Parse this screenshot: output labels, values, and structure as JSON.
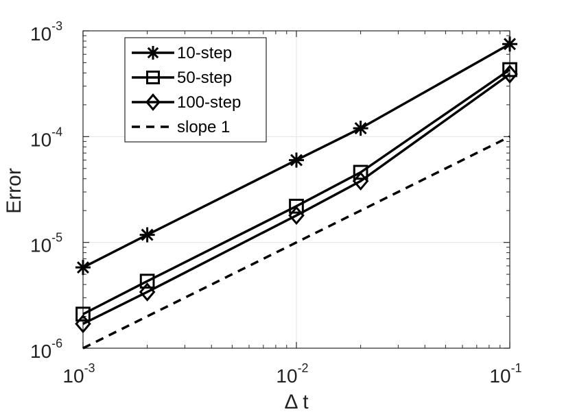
{
  "chart_data": {
    "type": "line",
    "scale": {
      "x": "log",
      "y": "log"
    },
    "xlabel": "Δ t",
    "ylabel": "Error",
    "xlim": [
      0.001,
      0.1
    ],
    "ylim": [
      1e-06,
      0.001
    ],
    "grid": true,
    "legend_position": "top-left",
    "x_ticks": [
      {
        "value": 0.001,
        "base": "10",
        "exp": "-3"
      },
      {
        "value": 0.01,
        "base": "10",
        "exp": "-2"
      },
      {
        "value": 0.1,
        "base": "10",
        "exp": "-1"
      }
    ],
    "y_ticks": [
      {
        "value": 1e-06,
        "base": "10",
        "exp": "-6"
      },
      {
        "value": 1e-05,
        "base": "10",
        "exp": "-5"
      },
      {
        "value": 0.0001,
        "base": "10",
        "exp": "-4"
      },
      {
        "value": 0.001,
        "base": "10",
        "exp": "-3"
      }
    ],
    "series": [
      {
        "name": "10-step",
        "marker": "asterisk",
        "style": "solid",
        "color": "#000000",
        "x": [
          0.001,
          0.002,
          0.01,
          0.02,
          0.1
        ],
        "y": [
          5.8e-06,
          1.18e-05,
          6e-05,
          0.00012,
          0.00075
        ]
      },
      {
        "name": "50-step",
        "marker": "square",
        "style": "solid",
        "color": "#000000",
        "x": [
          0.001,
          0.002,
          0.01,
          0.02,
          0.1
        ],
        "y": [
          2.1e-06,
          4.3e-06,
          2.2e-05,
          4.6e-05,
          0.00043
        ]
      },
      {
        "name": "100-step",
        "marker": "diamond",
        "style": "solid",
        "color": "#000000",
        "x": [
          0.001,
          0.002,
          0.01,
          0.02,
          0.1
        ],
        "y": [
          1.7e-06,
          3.4e-06,
          1.8e-05,
          3.8e-05,
          0.00039
        ]
      },
      {
        "name": "slope 1",
        "marker": "none",
        "style": "dashed",
        "color": "#000000",
        "x": [
          0.001,
          0.1
        ],
        "y": [
          1e-06,
          0.0001
        ]
      }
    ]
  }
}
